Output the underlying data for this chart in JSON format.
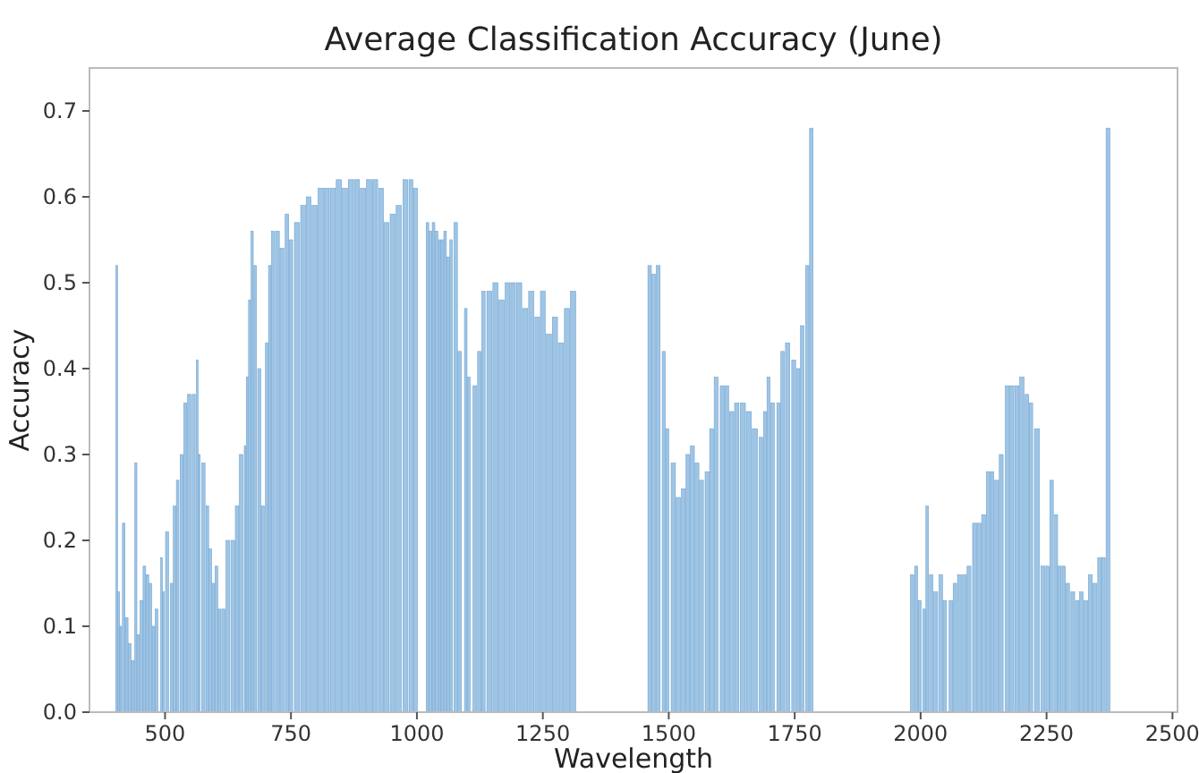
{
  "chart_data": {
    "type": "bar",
    "title": "Average Classification Accuracy (June)",
    "xlabel": "Wavelength",
    "ylabel": "Accuracy",
    "color": "#9fc5e5",
    "x": [
      404,
      408,
      412,
      418,
      424,
      430,
      436,
      442,
      447,
      453,
      459,
      465,
      471,
      477,
      483,
      493,
      497,
      504,
      513,
      519,
      525,
      533,
      540,
      548,
      557,
      564,
      568,
      576,
      584,
      590,
      596,
      602,
      608,
      616,
      625,
      635,
      643,
      651,
      659,
      663,
      668,
      673,
      679,
      687,
      694,
      702,
      708,
      714,
      723,
      732,
      742,
      750,
      762,
      774,
      785,
      797,
      809,
      821,
      833,
      845,
      857,
      869,
      881,
      893,
      905,
      917,
      929,
      940,
      952,
      964,
      977,
      988,
      997,
      1021,
      1027,
      1033,
      1039,
      1045,
      1050,
      1056,
      1062,
      1068,
      1077,
      1085,
      1097,
      1103,
      1115,
      1124,
      1132,
      1144,
      1156,
      1168,
      1180,
      1191,
      1203,
      1215,
      1227,
      1239,
      1250,
      1262,
      1274,
      1286,
      1298,
      1310,
      1462,
      1470,
      1479,
      1490,
      1497,
      1509,
      1519,
      1529,
      1538,
      1547,
      1556,
      1565,
      1576,
      1585,
      1594,
      1606,
      1615,
      1625,
      1635,
      1647,
      1659,
      1671,
      1683,
      1691,
      1698,
      1706,
      1718,
      1726,
      1736,
      1748,
      1757,
      1765,
      1775,
      1783,
      1983,
      1991,
      1998,
      2007,
      2013,
      2021,
      2030,
      2040,
      2048,
      2060,
      2068,
      2077,
      2087,
      2096,
      2107,
      2116,
      2125,
      2134,
      2142,
      2151,
      2160,
      2172,
      2181,
      2191,
      2201,
      2211,
      2219,
      2231,
      2243,
      2252,
      2260,
      2269,
      2276,
      2284,
      2292,
      2302,
      2311,
      2319,
      2328,
      2337,
      2346,
      2355,
      2363,
      2372
    ],
    "values": [
      0.52,
      0.14,
      0.1,
      0.22,
      0.11,
      0.08,
      0.06,
      0.29,
      0.09,
      0.13,
      0.17,
      0.16,
      0.15,
      0.1,
      0.12,
      0.18,
      0.14,
      0.21,
      0.15,
      0.24,
      0.27,
      0.3,
      0.36,
      0.37,
      0.37,
      0.41,
      0.3,
      0.29,
      0.24,
      0.19,
      0.15,
      0.17,
      0.12,
      0.12,
      0.2,
      0.2,
      0.24,
      0.3,
      0.31,
      0.39,
      0.48,
      0.56,
      0.52,
      0.4,
      0.24,
      0.43,
      0.52,
      0.56,
      0.56,
      0.54,
      0.58,
      0.55,
      0.57,
      0.59,
      0.6,
      0.59,
      0.61,
      0.61,
      0.61,
      0.62,
      0.61,
      0.62,
      0.62,
      0.61,
      0.62,
      0.62,
      0.61,
      0.57,
      0.58,
      0.59,
      0.62,
      0.62,
      0.61,
      0.57,
      0.56,
      0.57,
      0.56,
      0.55,
      0.55,
      0.56,
      0.53,
      0.55,
      0.57,
      0.42,
      0.47,
      0.39,
      0.38,
      0.42,
      0.49,
      0.49,
      0.5,
      0.48,
      0.5,
      0.5,
      0.5,
      0.47,
      0.49,
      0.46,
      0.49,
      0.44,
      0.46,
      0.43,
      0.47,
      0.49,
      0.52,
      0.51,
      0.52,
      0.42,
      0.33,
      0.29,
      0.25,
      0.26,
      0.3,
      0.31,
      0.29,
      0.27,
      0.28,
      0.33,
      0.39,
      0.38,
      0.38,
      0.35,
      0.36,
      0.36,
      0.35,
      0.33,
      0.32,
      0.35,
      0.39,
      0.36,
      0.36,
      0.42,
      0.43,
      0.41,
      0.4,
      0.45,
      0.52,
      0.68,
      0.16,
      0.17,
      0.13,
      0.12,
      0.24,
      0.16,
      0.14,
      0.16,
      0.13,
      0.13,
      0.15,
      0.16,
      0.16,
      0.17,
      0.22,
      0.22,
      0.23,
      0.28,
      0.28,
      0.27,
      0.3,
      0.38,
      0.38,
      0.38,
      0.39,
      0.37,
      0.36,
      0.33,
      0.17,
      0.17,
      0.27,
      0.23,
      0.17,
      0.17,
      0.15,
      0.14,
      0.13,
      0.14,
      0.13,
      0.16,
      0.15,
      0.18,
      0.18,
      0.68
    ],
    "xlim": [
      350,
      2510
    ],
    "xticks": [
      500,
      750,
      1000,
      1250,
      1500,
      1750,
      2000,
      2250,
      2500
    ],
    "ylim": [
      0,
      0.75
    ],
    "yticks": [
      {
        "value": 0,
        "label": "0.0"
      },
      0.1,
      0.2,
      0.3,
      0.4,
      0.5,
      0.6,
      0.7
    ],
    "grid": false
  }
}
